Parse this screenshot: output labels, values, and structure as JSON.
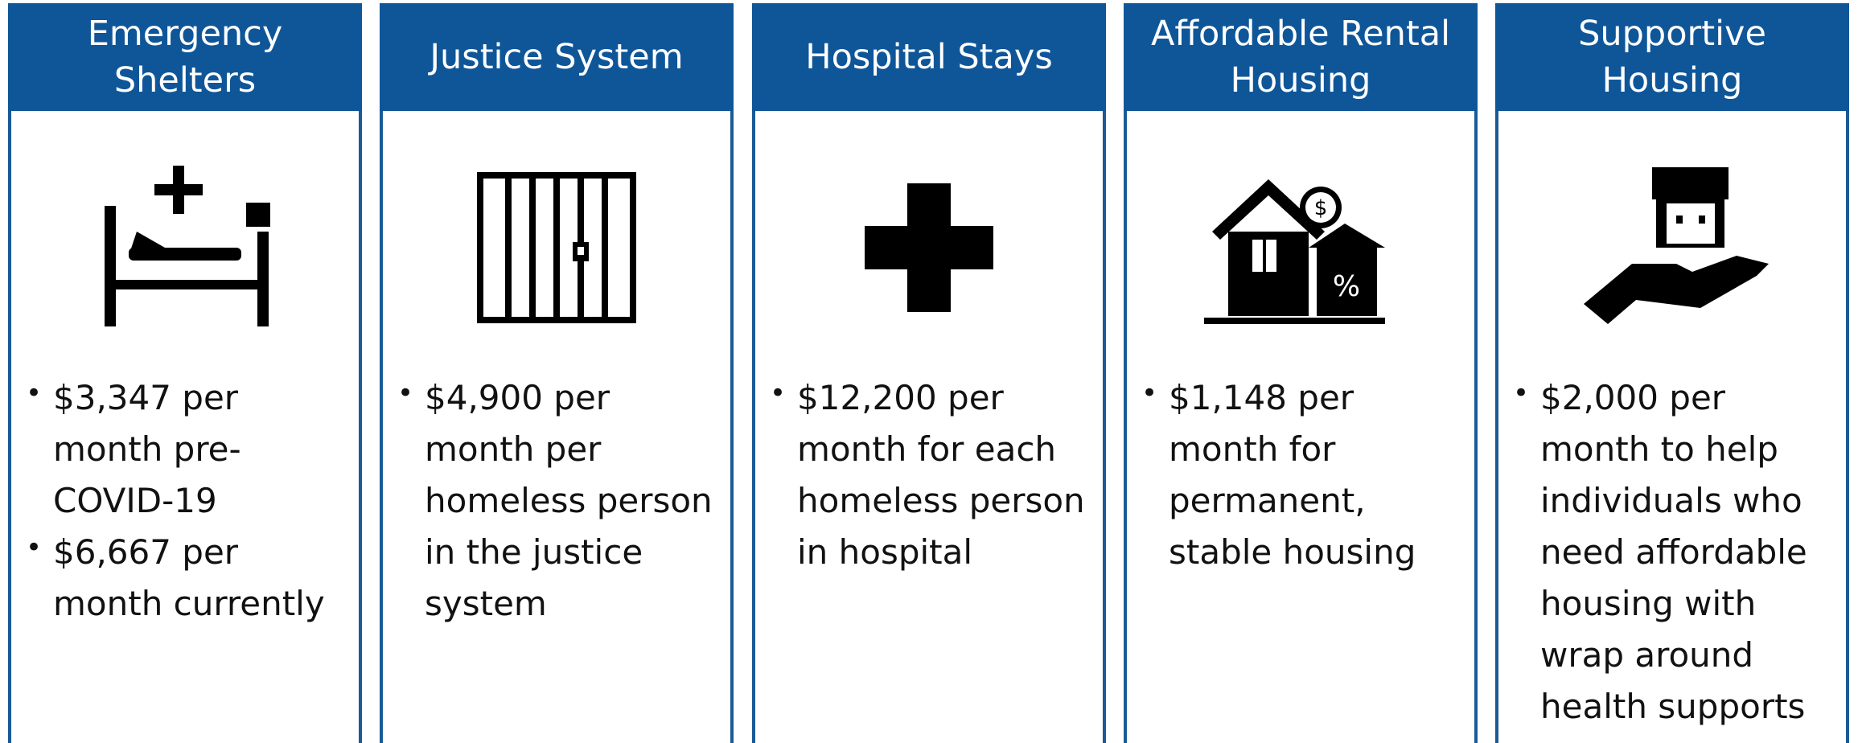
{
  "columns": [
    {
      "title": "Emergency Shelters",
      "bullets": [
        "$3,347 per month pre-COVID-19",
        "$6,667 per month currently"
      ]
    },
    {
      "title": "Justice System",
      "bullets": [
        "$4,900 per month per homeless person in the justice system"
      ]
    },
    {
      "title": "Hospital Stays",
      "bullets": [
        "$12,200 per month for each homeless person in hospital"
      ]
    },
    {
      "title": "Affordable Rental Housing",
      "bullets": [
        "$1,148 per month for permanent, stable housing"
      ]
    },
    {
      "title": "Supportive Housing",
      "bullets": [
        "$2,000 per month to help individuals who need affordable housing with wrap around health supports"
      ]
    }
  ]
}
